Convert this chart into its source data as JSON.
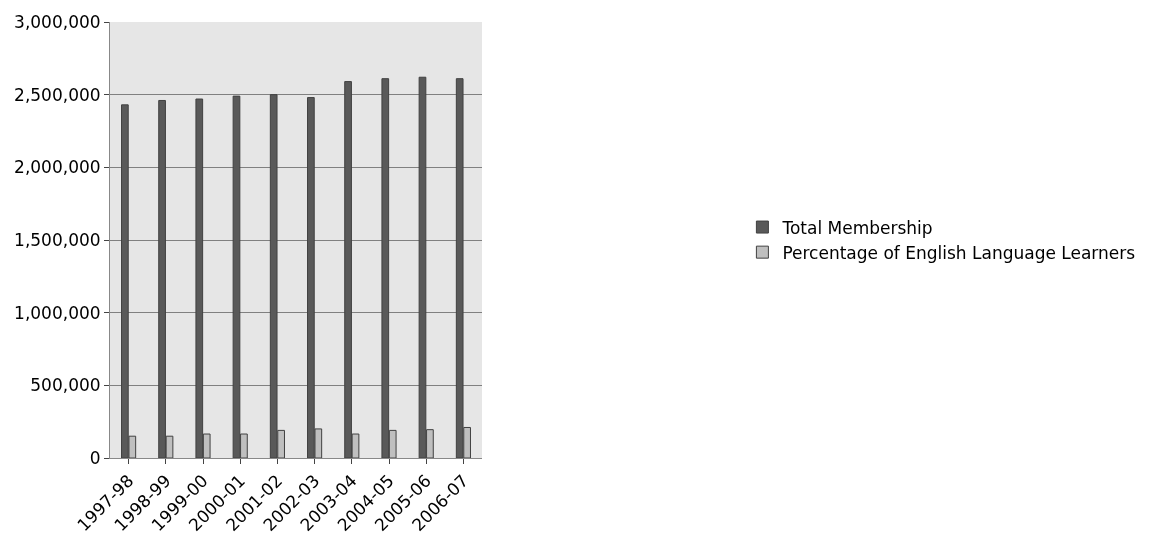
{
  "chart_data": {
    "type": "bar",
    "categories": [
      "1997-98",
      "1998-99",
      "1999-00",
      "2000-01",
      "2001-02",
      "2002-03",
      "2003-04",
      "2004-05",
      "2005-06",
      "2006-07"
    ],
    "series": [
      {
        "name": "Total Membership",
        "color": "#595959",
        "values": [
          2430000,
          2460000,
          2470000,
          2490000,
          2500000,
          2480000,
          2590000,
          2610000,
          2620000,
          2610000
        ]
      },
      {
        "name": "Percentage of English Language Learners",
        "color": "#bfbfbf",
        "values": [
          150000,
          150000,
          165000,
          165000,
          190000,
          200000,
          165000,
          190000,
          195000,
          210000
        ]
      }
    ],
    "ylim": [
      0,
      3000000
    ],
    "yticks": [
      {
        "value": 0,
        "label": "0"
      },
      {
        "value": 500000,
        "label": "500,000"
      },
      {
        "value": 1000000,
        "label": "1,000,000"
      },
      {
        "value": 1500000,
        "label": "1,500,000"
      },
      {
        "value": 2000000,
        "label": "2,000,000"
      },
      {
        "value": 2500000,
        "label": "2,500,000"
      },
      {
        "value": 3000000,
        "label": "3,000,000"
      }
    ],
    "grid": "y",
    "legend": "right"
  }
}
